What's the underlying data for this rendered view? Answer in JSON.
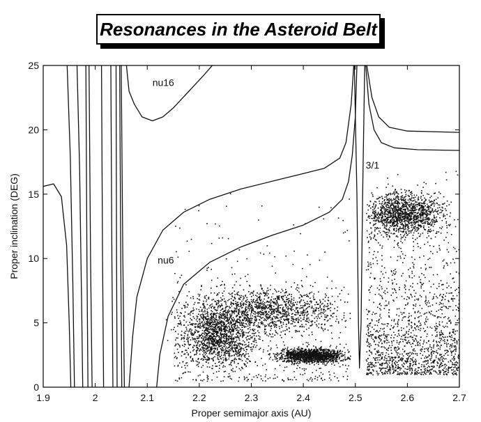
{
  "chart_data": {
    "type": "scatter",
    "title": "Resonances in the Asteroid Belt",
    "xlabel": "Proper semimajor axis (AU)",
    "ylabel": "Proper inclination (DEG)",
    "xlim": [
      1.9,
      2.7
    ],
    "ylim": [
      0,
      25
    ],
    "x_ticks": [
      "1.9",
      "2",
      "2.1",
      "2.2",
      "2.3",
      "2.4",
      "2.5",
      "2.6",
      "2.7"
    ],
    "y_ticks": [
      "0",
      "5",
      "10",
      "15",
      "20",
      "25"
    ],
    "grid": false,
    "annotations": [
      {
        "text": "nu16",
        "x": 2.11,
        "y": 23.4
      },
      {
        "text": "nu6",
        "x": 2.12,
        "y": 9.6
      },
      {
        "text": "3/1",
        "x": 2.52,
        "y": 17.0
      }
    ],
    "series": [
      {
        "kind": "curve",
        "points": [
          [
            1.9,
            15.6
          ],
          [
            1.92,
            15.8
          ],
          [
            1.935,
            14.8
          ],
          [
            1.945,
            11.0
          ],
          [
            1.95,
            5.0
          ],
          [
            1.953,
            0
          ]
        ]
      },
      {
        "kind": "curve",
        "points": [
          [
            1.946,
            25
          ],
          [
            1.952,
            18.0
          ],
          [
            1.957,
            8.0
          ],
          [
            1.96,
            0
          ]
        ]
      },
      {
        "kind": "curve",
        "points": [
          [
            1.965,
            25
          ],
          [
            1.97,
            17.0
          ],
          [
            1.974,
            6.0
          ],
          [
            1.976,
            0
          ]
        ]
      },
      {
        "kind": "curve",
        "points": [
          [
            1.982,
            25
          ],
          [
            1.984,
            10.0
          ],
          [
            1.986,
            0
          ]
        ]
      },
      {
        "kind": "curve",
        "points": [
          [
            1.988,
            25
          ],
          [
            1.991,
            10.0
          ],
          [
            1.994,
            0
          ]
        ]
      },
      {
        "kind": "curve",
        "points": [
          [
            2.012,
            25
          ],
          [
            2.014,
            10.0
          ],
          [
            2.016,
            0
          ]
        ]
      },
      {
        "kind": "curve",
        "points": [
          [
            2.03,
            25
          ],
          [
            2.032,
            10.0
          ],
          [
            2.034,
            0
          ]
        ]
      },
      {
        "kind": "curve",
        "points": [
          [
            2.04,
            25
          ],
          [
            2.041,
            10.0
          ],
          [
            2.042,
            0
          ]
        ]
      },
      {
        "kind": "curve",
        "points": [
          [
            2.047,
            25
          ],
          [
            2.049,
            10.0
          ],
          [
            2.051,
            0
          ]
        ]
      },
      {
        "kind": "curve",
        "points": [
          [
            2.05,
            25
          ],
          [
            2.053,
            10.0
          ],
          [
            2.056,
            0
          ]
        ]
      },
      {
        "kind": "curve",
        "points": [
          [
            2.06,
            25
          ],
          [
            2.065,
            23.0
          ],
          [
            2.075,
            22.0
          ],
          [
            2.09,
            21.0
          ],
          [
            2.11,
            20.7
          ],
          [
            2.13,
            21.0
          ],
          [
            2.15,
            21.7
          ],
          [
            2.18,
            23.0
          ],
          [
            2.21,
            24.3
          ],
          [
            2.225,
            25
          ]
        ]
      },
      {
        "kind": "curve",
        "points": [
          [
            2.065,
            0
          ],
          [
            2.072,
            4.0
          ],
          [
            2.08,
            7.0
          ],
          [
            2.1,
            10.0
          ],
          [
            2.13,
            12.2
          ],
          [
            2.17,
            13.6
          ],
          [
            2.22,
            14.6
          ],
          [
            2.28,
            15.4
          ],
          [
            2.34,
            16.0
          ],
          [
            2.4,
            16.6
          ],
          [
            2.44,
            17.0
          ],
          [
            2.47,
            17.8
          ],
          [
            2.482,
            19.0
          ],
          [
            2.492,
            22.0
          ],
          [
            2.497,
            25
          ]
        ]
      },
      {
        "kind": "curve",
        "points": [
          [
            2.118,
            0
          ],
          [
            2.124,
            2.5
          ],
          [
            2.14,
            5.5
          ],
          [
            2.17,
            8.0
          ],
          [
            2.22,
            9.7
          ],
          [
            2.28,
            10.9
          ],
          [
            2.34,
            11.8
          ],
          [
            2.4,
            12.6
          ],
          [
            2.45,
            13.6
          ],
          [
            2.475,
            14.6
          ],
          [
            2.487,
            16.0
          ],
          [
            2.494,
            18.0
          ],
          [
            2.5,
            21.0
          ],
          [
            2.503,
            25
          ]
        ]
      },
      {
        "kind": "curve",
        "points": [
          [
            2.498,
            25
          ],
          [
            2.503,
            15.0
          ],
          [
            2.506,
            5.0
          ],
          [
            2.508,
            1.5
          ],
          [
            2.511,
            5.0
          ],
          [
            2.514,
            15.0
          ],
          [
            2.518,
            25
          ]
        ]
      },
      {
        "kind": "curve",
        "points": [
          [
            2.522,
            25
          ],
          [
            2.532,
            22.5
          ],
          [
            2.545,
            21.0
          ],
          [
            2.565,
            20.2
          ],
          [
            2.6,
            19.9
          ],
          [
            2.7,
            19.8
          ]
        ]
      },
      {
        "kind": "curve",
        "points": [
          [
            2.52,
            25
          ],
          [
            2.526,
            22.0
          ],
          [
            2.536,
            20.0
          ],
          [
            2.55,
            19.0
          ],
          [
            2.575,
            18.6
          ],
          [
            2.62,
            18.45
          ],
          [
            2.7,
            18.4
          ]
        ]
      },
      {
        "kind": "scatter",
        "regions": [
          {
            "x": [
              2.2,
              2.45
            ],
            "y": [
              4.5,
              7.5
            ],
            "density": "high"
          },
          {
            "x": [
              2.17,
              2.3
            ],
            "y": [
              2.0,
              6.0
            ],
            "density": "high"
          },
          {
            "x": [
              2.36,
              2.47
            ],
            "y": [
              2.0,
              3.0
            ],
            "density": "high"
          },
          {
            "x": [
              2.53,
              2.66
            ],
            "y": [
              12.0,
              15.0
            ],
            "density": "high"
          },
          {
            "x": [
              2.52,
              2.7
            ],
            "y": [
              1.0,
              17.0
            ],
            "density": "medium"
          },
          {
            "x": [
              2.15,
              2.5
            ],
            "y": [
              0.5,
              16.0
            ],
            "density": "low"
          }
        ]
      }
    ]
  }
}
